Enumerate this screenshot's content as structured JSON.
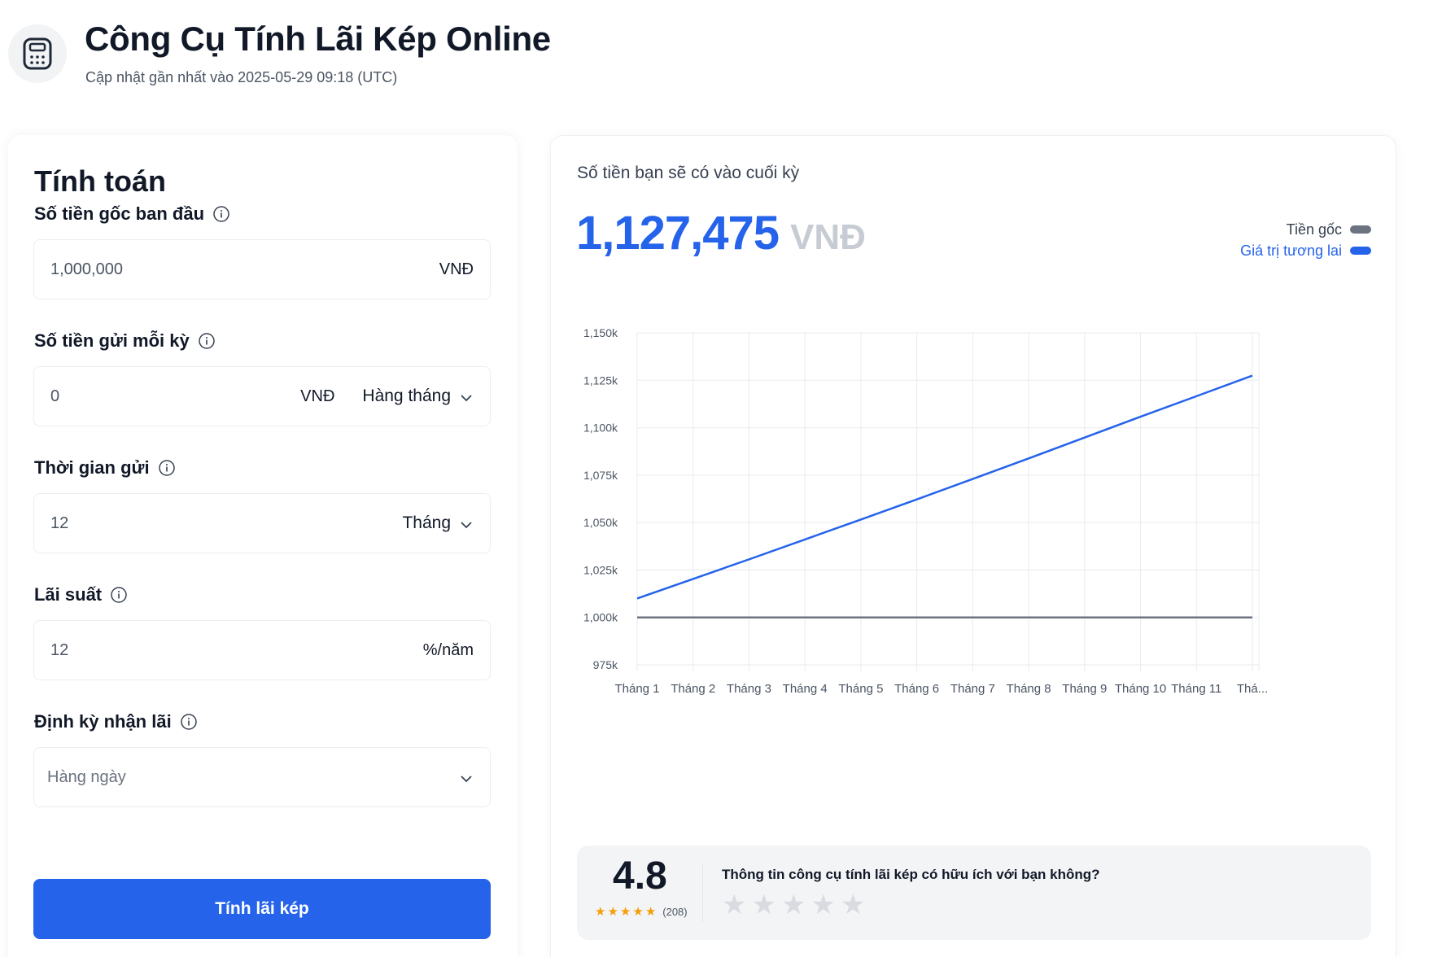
{
  "header": {
    "icon": "calculator-icon",
    "title": "Công Cụ Tính Lãi Kép Online",
    "subtitle": "Cập nhật gần nhất vào 2025-05-29 09:18 (UTC)"
  },
  "calculator": {
    "title": "Tính toán",
    "principal": {
      "label": "Số tiền gốc ban đầu",
      "value": "1,000,000",
      "unit": "VNĐ"
    },
    "deposit": {
      "label": "Số tiền gửi mỗi kỳ",
      "value": "0",
      "unit": "VNĐ",
      "frequency": "Hàng tháng"
    },
    "duration": {
      "label": "Thời gian gửi",
      "value": "12",
      "unit": "Tháng"
    },
    "rate": {
      "label": "Lãi suất",
      "value": "12",
      "unit": "%/năm"
    },
    "compounding": {
      "label": "Định kỳ nhận lãi",
      "value": "Hàng ngày"
    },
    "submit_label": "Tính lãi kép"
  },
  "result": {
    "label": "Số tiền bạn sẽ có vào cuối kỳ",
    "value": "1,127,475",
    "currency": "VNĐ"
  },
  "chart_data": {
    "type": "line",
    "x": [
      "Tháng 1",
      "Tháng 2",
      "Tháng 3",
      "Tháng 4",
      "Tháng 5",
      "Tháng 6",
      "Tháng 7",
      "Tháng 8",
      "Tháng 9",
      "Tháng 10",
      "Tháng 11",
      "Thá..."
    ],
    "series": [
      {
        "name": "Tiền gốc",
        "color": "#6b7280",
        "values": [
          1000000,
          1000000,
          1000000,
          1000000,
          1000000,
          1000000,
          1000000,
          1000000,
          1000000,
          1000000,
          1000000,
          1000000
        ]
      },
      {
        "name": "Giá trị tương lai",
        "color": "#2563eb",
        "values": [
          1010000,
          1020300,
          1030600,
          1041100,
          1051600,
          1062200,
          1073000,
          1083800,
          1094800,
          1105800,
          1116600,
          1127475
        ]
      }
    ],
    "yticks": [
      "1,150k",
      "1,125k",
      "1,100k",
      "1,075k",
      "1,050k",
      "1,025k",
      "1,000k",
      "975k"
    ],
    "ylim": [
      975000,
      1150000
    ],
    "grid": true,
    "legend": "top-right"
  },
  "rating": {
    "score": "4.8",
    "count": "(208)",
    "question": "Thông tin công cụ tính lãi kép có hữu ích với bạn không?"
  }
}
